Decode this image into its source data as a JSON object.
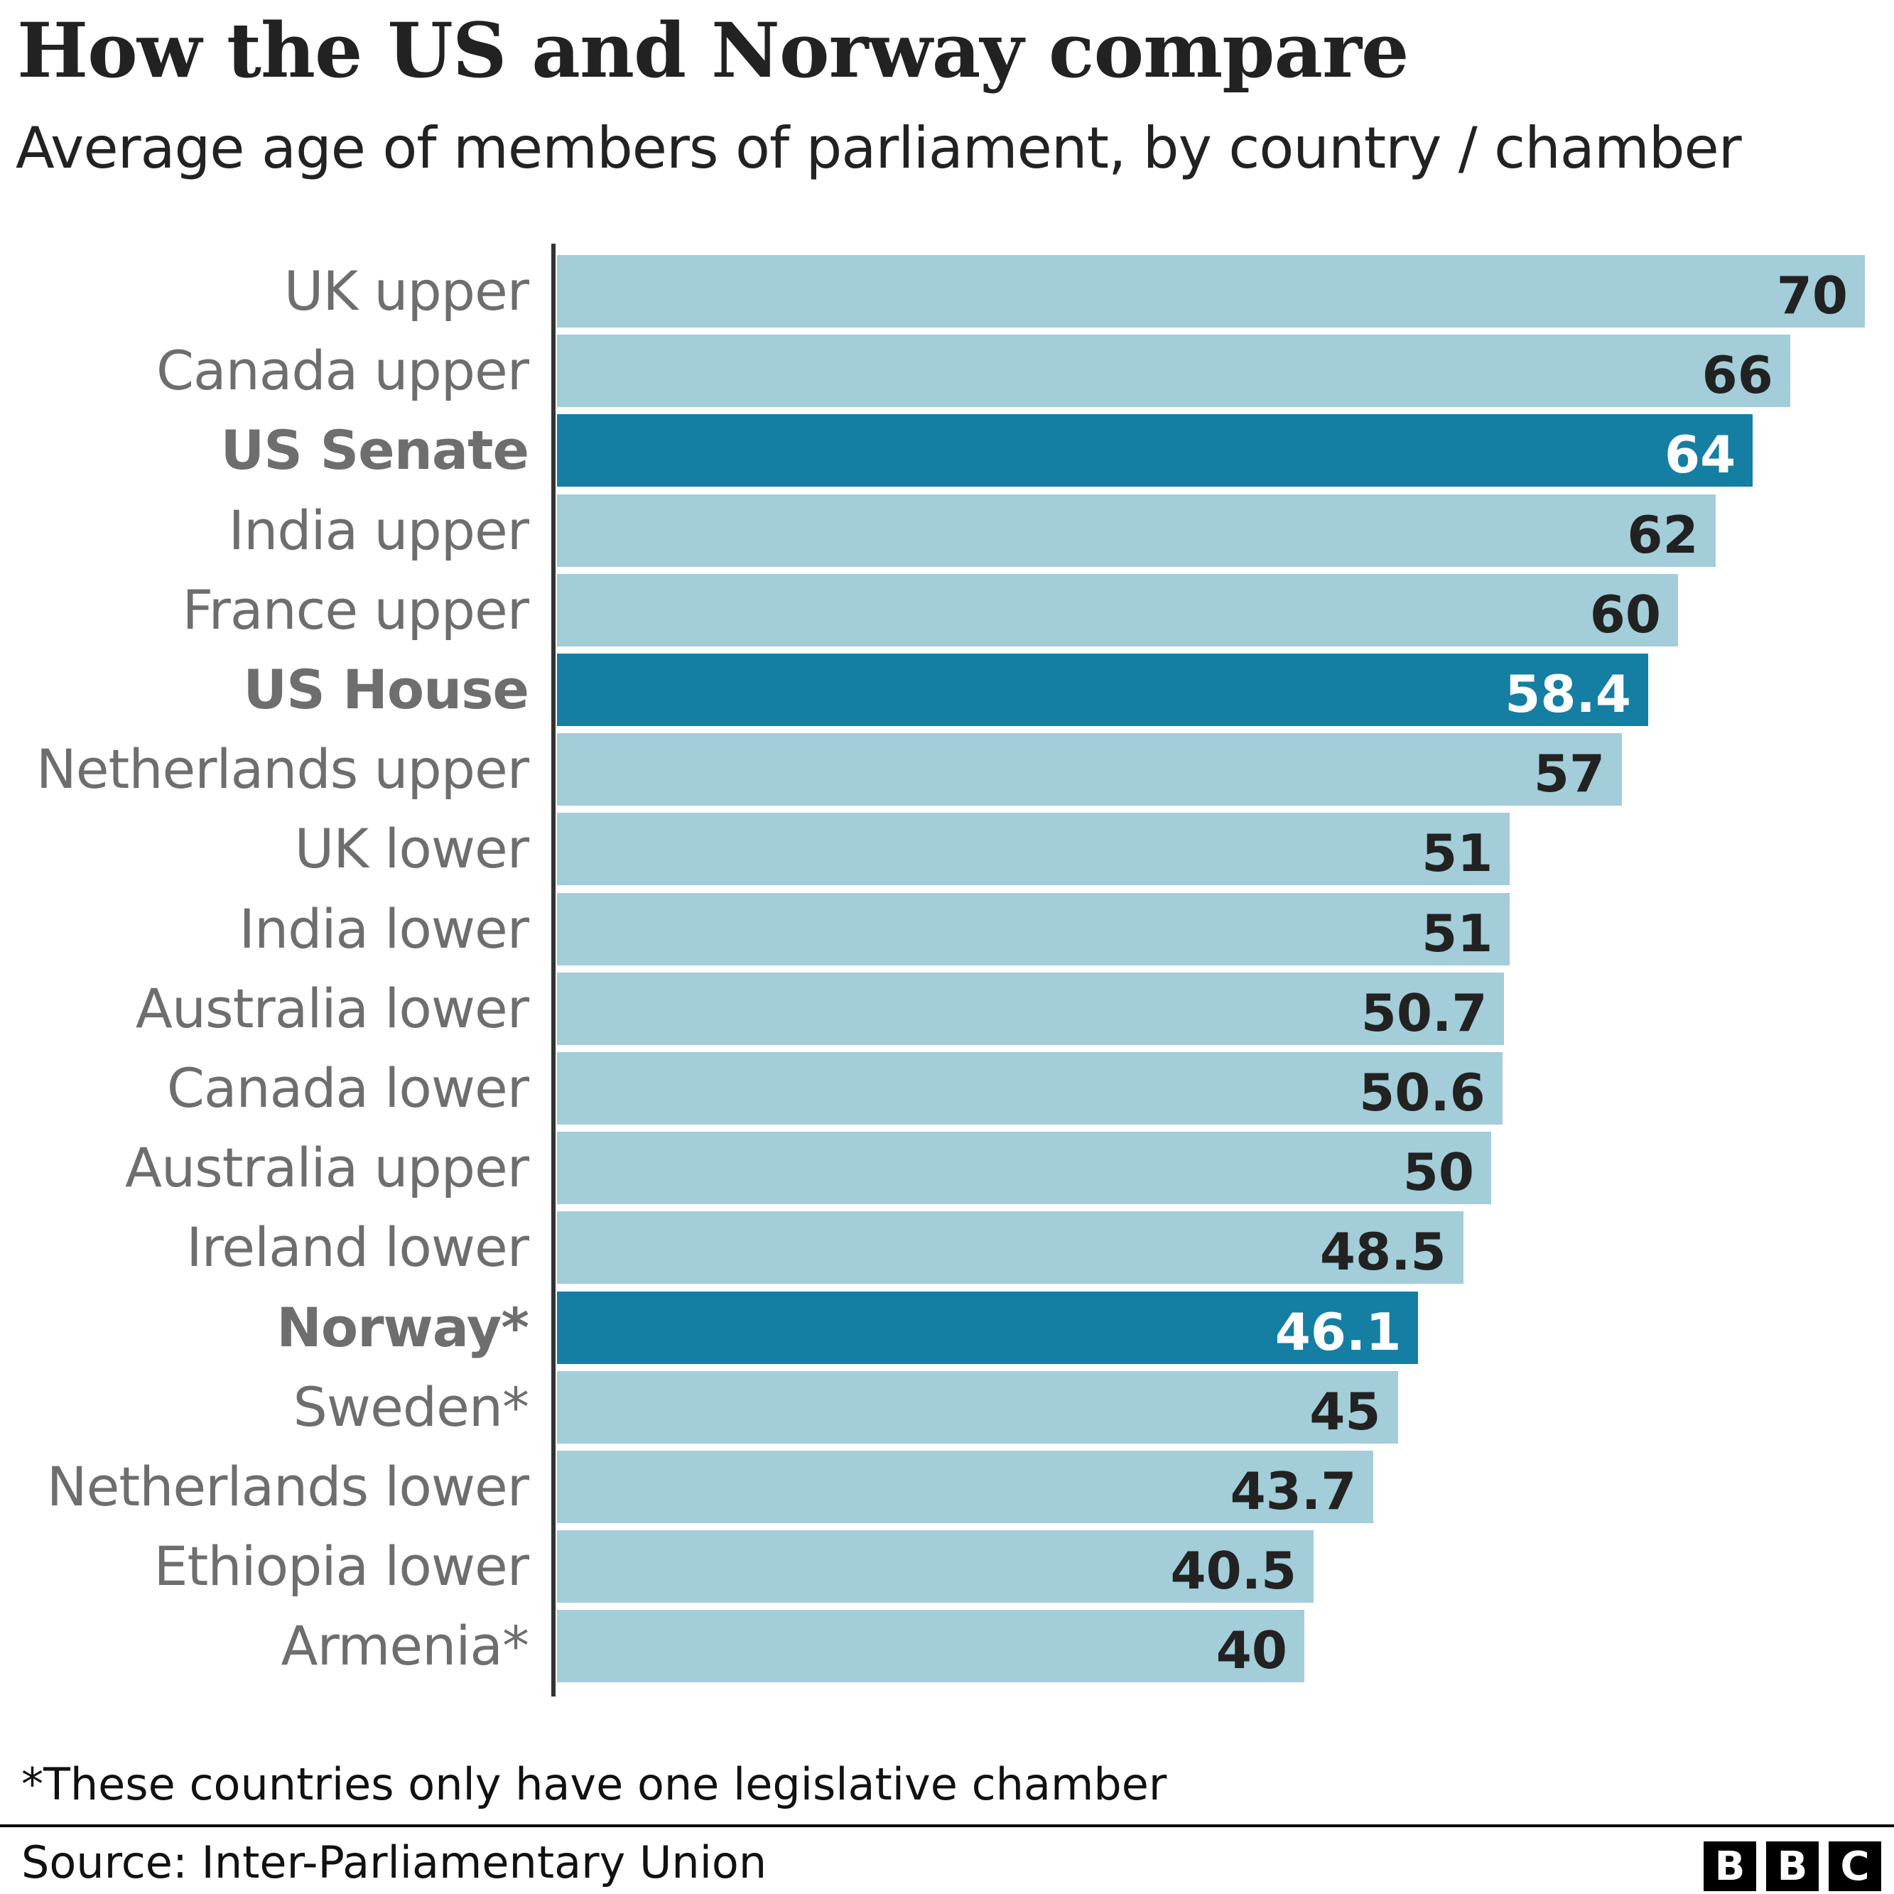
{
  "title": "How the US and Norway compare",
  "subtitle": "Average age of members of parliament, by country / chamber",
  "footnote": "*These countries only have one legislative chamber",
  "source": "Source: Inter-Parliamentary Union",
  "logo": [
    "B",
    "B",
    "C"
  ],
  "colors": {
    "default": "#a3cdd8",
    "highlight": "#157ea3",
    "label_dark": "#222222",
    "label_light": "#ffffff"
  },
  "chart_data": {
    "type": "bar",
    "orientation": "horizontal",
    "title": "How the US and Norway compare",
    "subtitle": "Average age of members of parliament, by country / chamber",
    "xlim": [
      0,
      70
    ],
    "grid": false,
    "categories": [
      "UK upper",
      "Canada upper",
      "US Senate",
      "India upper",
      "France upper",
      "US House",
      "Netherlands upper",
      "UK lower",
      "India lower",
      "Australia lower",
      "Canada lower",
      "Australia upper",
      "Ireland lower",
      "Norway*",
      "Sweden*",
      "Netherlands lower",
      "Ethiopia lower",
      "Armenia*"
    ],
    "values": [
      70,
      66,
      64,
      62,
      60,
      58.4,
      57,
      51,
      51,
      50.7,
      50.6,
      50,
      48.5,
      46.1,
      45,
      43.7,
      40.5,
      40
    ],
    "labels": [
      "70",
      "66",
      "64",
      "62",
      "60",
      "58.4",
      "57",
      "51",
      "51",
      "50.7",
      "50.6",
      "50",
      "48.5",
      "46.1",
      "45",
      "43.7",
      "40.5",
      "40"
    ],
    "highlighted": [
      "US Senate",
      "US House",
      "Norway*"
    ]
  }
}
